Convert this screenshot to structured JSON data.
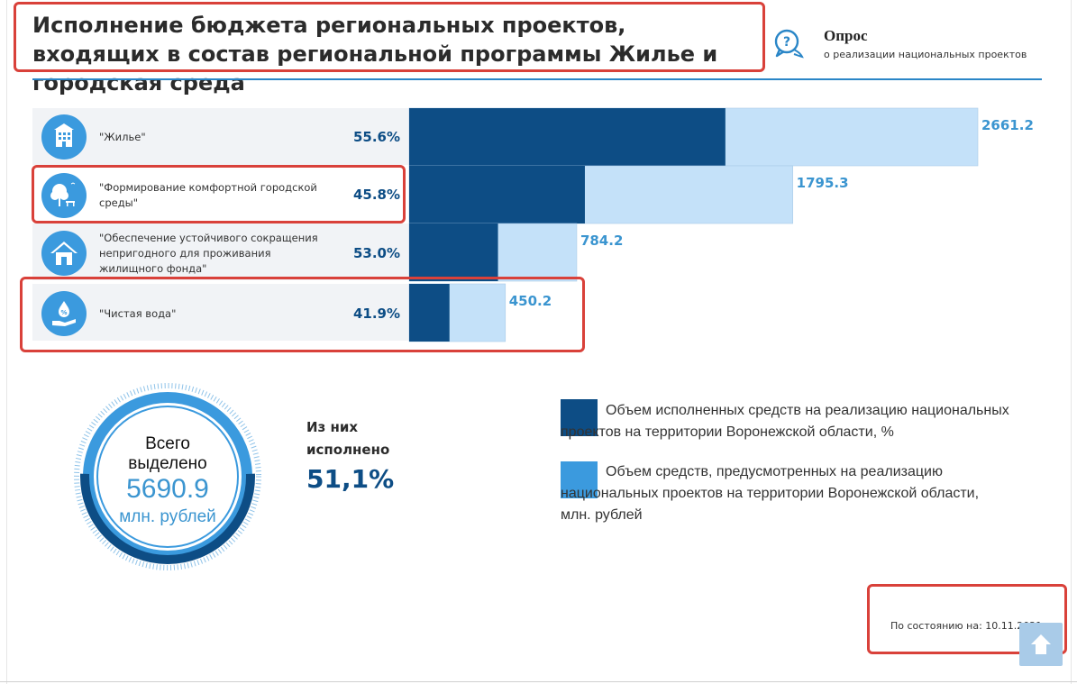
{
  "header": {
    "title": "Исполнение бюджета региональных проектов, входящих в состав региональной программы Жилье и городская среда",
    "survey_title": "Опрос",
    "survey_sub": "о реализации национальных проектов"
  },
  "rows": [
    {
      "label": "\"Жилье\"",
      "percent": "55.6%",
      "icon": "apartment-building-icon"
    },
    {
      "label": "\"Формирование комфортной городской среды\"",
      "percent": "45.8%",
      "icon": "park-tree-bench-icon"
    },
    {
      "label": "\"Обеспечение устойчивого сокращения непригодного для проживания жилищного фонда\"",
      "percent": "53.0%",
      "icon": "house-icon"
    },
    {
      "label": "\"Чистая вода\"",
      "percent": "41.9%",
      "icon": "water-hand-icon"
    }
  ],
  "chart_data": {
    "type": "bar",
    "orientation": "horizontal",
    "categories": [
      "\"Жилье\"",
      "\"Формирование комфортной городской среды\"",
      "\"Обеспечение устойчивого сокращения непригодного для проживания жилищного фонда\"",
      "\"Чистая вода\""
    ],
    "series": [
      {
        "name": "Объем средств, предусмотренных на реализацию национальных проектов на территории Воронежской области, млн. рублей",
        "values": [
          2661.2,
          1795.3,
          784.2,
          450.2
        ],
        "color": "#c4e1f9"
      },
      {
        "name": "Объем исполненных средств на реализацию национальных проектов на территории Воронежской области, %",
        "values": [
          55.6,
          45.8,
          53.0,
          41.9
        ],
        "color": "#0d4d85"
      }
    ],
    "value_labels": [
      "2661.2",
      "1795.3",
      "784.2",
      "450.2"
    ]
  },
  "summary": {
    "total_line1": "Всего",
    "total_line2": "выделено",
    "total_value": "5690.9",
    "total_unit": "млн. рублей",
    "spent_label": "Из них исполнено",
    "spent_value": "51,1%",
    "spent_fraction": 0.511
  },
  "legend": [
    {
      "text": "Объем исполненных средств на реализацию национальных проектов на территории Воронежской области, %",
      "color": "#0d4d85"
    },
    {
      "text": "Объем средств, предусмотренных на реализацию национальных проектов на территории Воронежской области, млн. рублей",
      "color": "#3b9ade"
    }
  ],
  "footer": {
    "date_text": "По состоянию на: 10.11.2021"
  },
  "colors": {
    "accent": "#3b9ade",
    "dark": "#0d4d85",
    "light": "#c4e1f9",
    "highlight": "#d9413a"
  }
}
